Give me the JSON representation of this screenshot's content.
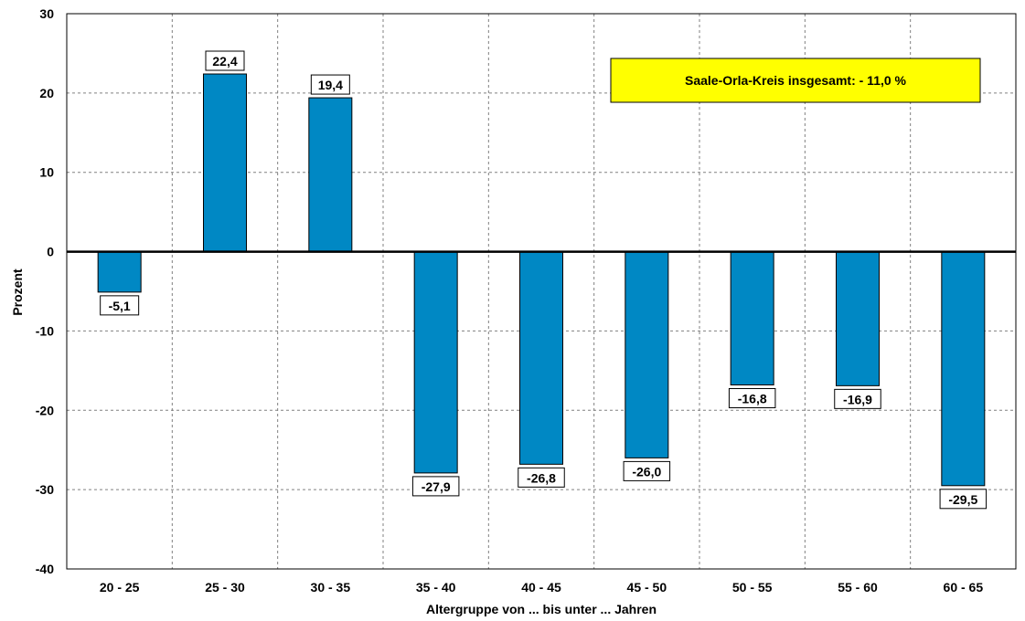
{
  "colors": {
    "bar": "#0088c4",
    "annotation_bg": "#ffff00",
    "grid": "#808080"
  },
  "chart_data": {
    "type": "bar",
    "title": "",
    "xlabel": "Altergruppe von ... bis unter ... Jahren",
    "ylabel": "Prozent",
    "ylim": [
      -40,
      30
    ],
    "yticks": [
      30,
      20,
      10,
      0,
      -10,
      -20,
      -30,
      -40
    ],
    "grid": true,
    "categories": [
      "20 - 25",
      "25 - 30",
      "30 - 35",
      "35 - 40",
      "40 - 45",
      "45 - 50",
      "50 - 55",
      "55 - 60",
      "60 - 65"
    ],
    "values": [
      -5.1,
      22.4,
      19.4,
      -27.9,
      -26.8,
      -26.0,
      -16.8,
      -16.9,
      -29.5
    ],
    "value_labels": [
      "-5,1",
      "22,4",
      "19,4",
      "-27,9",
      "-26,8",
      "-26,0",
      "-16,8",
      "-16,9",
      "-29,5"
    ],
    "annotation": "Saale-Orla-Kreis insgesamt: - 11,0 %"
  }
}
